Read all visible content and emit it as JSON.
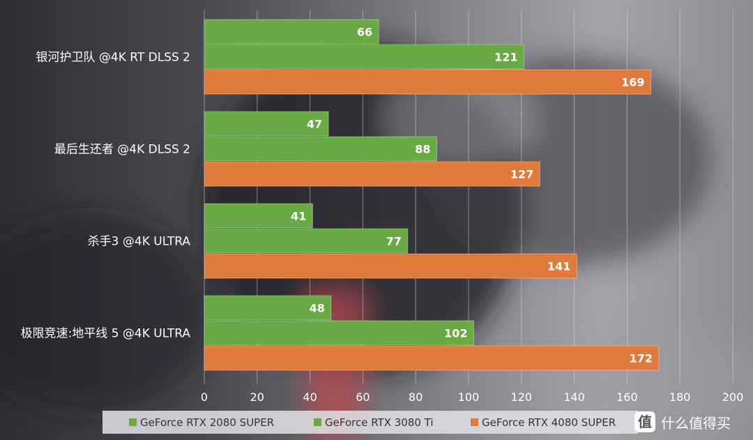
{
  "chart_data": {
    "type": "bar",
    "orientation": "horizontal",
    "categories": [
      "银河护卫队 @4K RT DLSS 2",
      "最后生还者 @4K DLSS 2",
      "杀手3 @4K ULTRA",
      "极限竞速:地平线 5 @4K ULTRA"
    ],
    "series": [
      {
        "name": "GeForce RTX 2080 SUPER",
        "color": "#6aaa45",
        "values": [
          66,
          47,
          41,
          48
        ]
      },
      {
        "name": "GeForce RTX 3080 Ti",
        "color": "#6aaa45",
        "values": [
          121,
          88,
          77,
          102
        ]
      },
      {
        "name": "GeForce RTX 4080 SUPER",
        "color": "#e07a3a",
        "values": [
          169,
          127,
          141,
          172
        ]
      }
    ],
    "xlim": [
      0,
      200
    ],
    "xticks": [
      0,
      20,
      40,
      60,
      80,
      100,
      120,
      140,
      160,
      180,
      200
    ],
    "grid": "vertical",
    "legend_position": "bottom",
    "data_labels": true
  },
  "watermark": {
    "text": "什么值得买",
    "icon_char": "值"
  }
}
